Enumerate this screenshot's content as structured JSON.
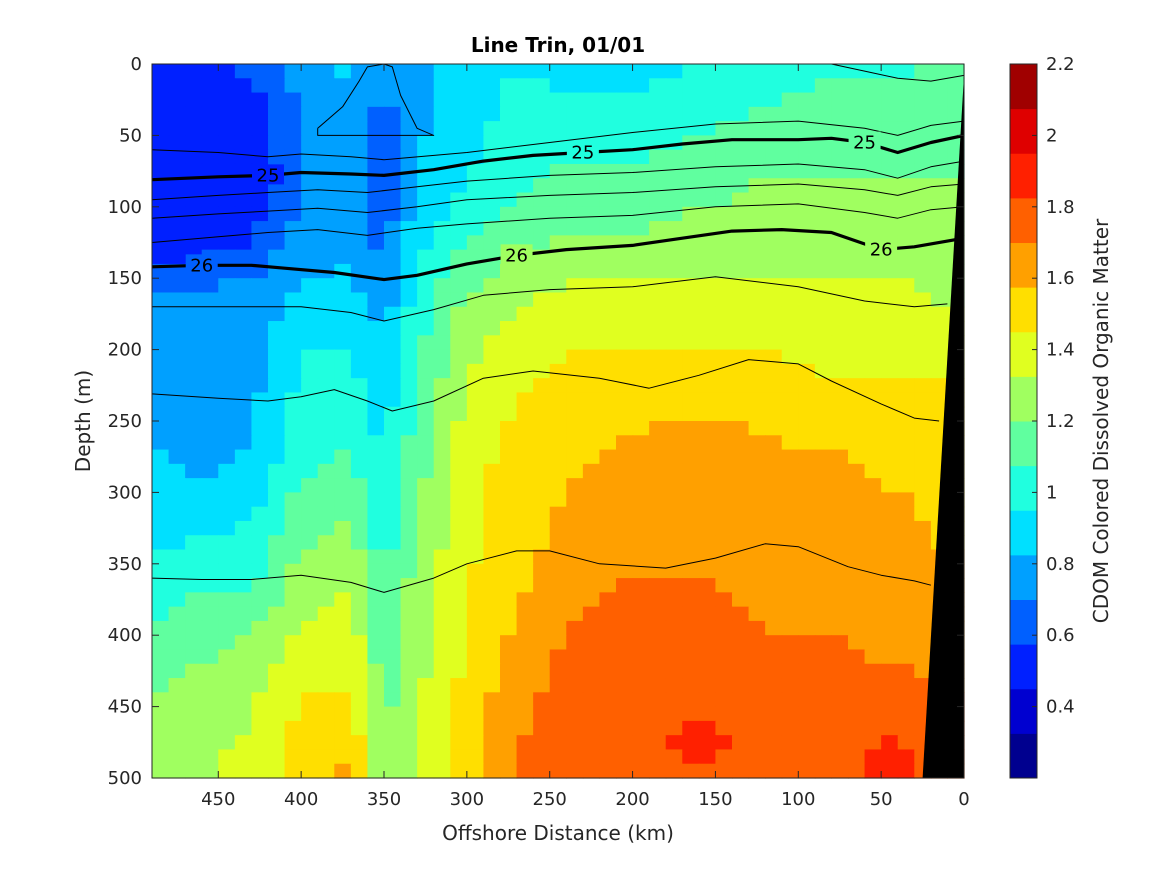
{
  "chart_data": {
    "type": "heatmap",
    "title": "Line Trin, 01/01",
    "xlabel": "Offshore Distance (km)",
    "ylabel": "Depth (m)",
    "colorbar_label": "CDOM Colored Dissolved Organic Matter",
    "xlim": [
      490,
      0
    ],
    "ylim": [
      0,
      500
    ],
    "xticks": [
      "450",
      "400",
      "350",
      "300",
      "250",
      "200",
      "150",
      "100",
      "50",
      "0"
    ],
    "yticks": [
      "0",
      "50",
      "100",
      "150",
      "200",
      "250",
      "300",
      "350",
      "400",
      "450",
      "500"
    ],
    "clim": [
      0.2,
      2.2
    ],
    "cticks": [
      "0.4",
      "0.6",
      "0.8",
      "1",
      "1.2",
      "1.4",
      "1.6",
      "1.8",
      "2",
      "2.2"
    ],
    "colormap": [
      "#00008f",
      "#0000d0",
      "#0020ff",
      "#0060ff",
      "#00a0ff",
      "#00e0ff",
      "#20ffdf",
      "#60ff9f",
      "#a0ff60",
      "#e0ff20",
      "#ffdf00",
      "#ffa000",
      "#ff6000",
      "#ff2000",
      "#df0000",
      "#a00000"
    ],
    "x": [
      490,
      460,
      430,
      400,
      370,
      350,
      330,
      300,
      270,
      240,
      200,
      160,
      120,
      80,
      40,
      10
    ],
    "depth": [
      0,
      40,
      80,
      120,
      160,
      200,
      240,
      280,
      320,
      360,
      400,
      440,
      480,
      500
    ],
    "cdom": [
      [
        0.55,
        0.55,
        0.6,
        0.75,
        0.85,
        0.7,
        0.8,
        0.9,
        0.95,
        0.9,
        0.9,
        0.95,
        1.0,
        1.05,
        1.05,
        1.1
      ],
      [
        0.5,
        0.45,
        0.5,
        0.7,
        0.8,
        0.65,
        0.8,
        0.9,
        1.0,
        1.0,
        1.0,
        1.05,
        1.1,
        1.15,
        1.15,
        1.15
      ],
      [
        0.45,
        0.45,
        0.5,
        0.7,
        0.75,
        0.6,
        0.85,
        0.95,
        1.05,
        1.1,
        1.1,
        1.15,
        1.2,
        1.2,
        1.2,
        1.2
      ],
      [
        0.5,
        0.5,
        0.55,
        0.75,
        0.8,
        0.65,
        0.9,
        1.05,
        1.15,
        1.2,
        1.2,
        1.25,
        1.25,
        1.25,
        1.25,
        1.2
      ],
      [
        0.7,
        0.7,
        0.75,
        0.85,
        0.85,
        0.75,
        1.0,
        1.2,
        1.3,
        1.35,
        1.35,
        1.35,
        1.35,
        1.35,
        1.35,
        1.3
      ],
      [
        0.75,
        0.7,
        0.75,
        0.95,
        0.95,
        0.85,
        1.05,
        1.3,
        1.4,
        1.45,
        1.45,
        1.45,
        1.45,
        1.4,
        1.4,
        1.4
      ],
      [
        0.8,
        0.75,
        0.8,
        1.0,
        1.0,
        0.9,
        1.1,
        1.35,
        1.45,
        1.5,
        1.55,
        1.55,
        1.55,
        1.5,
        1.5,
        1.5
      ],
      [
        0.85,
        0.8,
        0.85,
        1.05,
        1.1,
        0.95,
        1.15,
        1.4,
        1.5,
        1.55,
        1.6,
        1.65,
        1.6,
        1.6,
        1.55,
        1.55
      ],
      [
        0.9,
        0.9,
        0.95,
        1.15,
        1.2,
        1.0,
        1.2,
        1.4,
        1.5,
        1.6,
        1.65,
        1.65,
        1.6,
        1.6,
        1.6,
        1.55
      ],
      [
        1.0,
        1.05,
        1.05,
        1.25,
        1.3,
        1.05,
        1.25,
        1.45,
        1.55,
        1.65,
        1.7,
        1.7,
        1.65,
        1.65,
        1.6,
        1.6
      ],
      [
        1.1,
        1.15,
        1.2,
        1.35,
        1.4,
        1.1,
        1.25,
        1.45,
        1.6,
        1.7,
        1.75,
        1.75,
        1.7,
        1.7,
        1.65,
        1.6
      ],
      [
        1.2,
        1.25,
        1.3,
        1.45,
        1.45,
        1.15,
        1.3,
        1.5,
        1.65,
        1.75,
        1.8,
        1.8,
        1.75,
        1.75,
        1.75,
        1.7
      ],
      [
        1.25,
        1.3,
        1.35,
        1.5,
        1.55,
        1.2,
        1.3,
        1.5,
        1.7,
        1.8,
        1.8,
        1.85,
        1.8,
        1.8,
        1.85,
        1.75
      ],
      [
        1.25,
        1.3,
        1.35,
        1.55,
        1.6,
        1.2,
        1.3,
        1.5,
        1.7,
        1.75,
        1.8,
        1.8,
        1.8,
        1.8,
        1.85,
        1.75
      ]
    ],
    "isopycnals": [
      {
        "label": "",
        "bold": false,
        "points": [
          [
            490,
            60
          ],
          [
            450,
            62
          ],
          [
            420,
            65
          ],
          [
            400,
            63
          ],
          [
            370,
            65
          ],
          [
            350,
            67
          ],
          [
            300,
            62
          ],
          [
            250,
            55
          ],
          [
            200,
            48
          ],
          [
            150,
            42
          ],
          [
            100,
            40
          ],
          [
            60,
            45
          ],
          [
            40,
            50
          ],
          [
            20,
            43
          ],
          [
            0,
            40
          ]
        ]
      },
      {
        "label": "25",
        "bold": true,
        "points": [
          [
            490,
            81
          ],
          [
            450,
            79
          ],
          [
            420,
            78
          ],
          [
            400,
            76
          ],
          [
            370,
            77
          ],
          [
            350,
            78
          ],
          [
            320,
            74
          ],
          [
            290,
            68
          ],
          [
            260,
            64
          ],
          [
            230,
            62
          ],
          [
            200,
            60
          ],
          [
            170,
            56
          ],
          [
            140,
            53
          ],
          [
            120,
            53
          ],
          [
            100,
            53
          ],
          [
            80,
            52
          ],
          [
            60,
            55
          ],
          [
            40,
            62
          ],
          [
            20,
            55
          ],
          [
            0,
            50
          ]
        ]
      },
      {
        "label": "",
        "bold": false,
        "points": [
          [
            490,
            95
          ],
          [
            450,
            92
          ],
          [
            420,
            90
          ],
          [
            390,
            88
          ],
          [
            360,
            90
          ],
          [
            330,
            86
          ],
          [
            300,
            82
          ],
          [
            250,
            78
          ],
          [
            200,
            76
          ],
          [
            150,
            72
          ],
          [
            100,
            70
          ],
          [
            60,
            74
          ],
          [
            40,
            80
          ],
          [
            20,
            72
          ],
          [
            0,
            68
          ]
        ]
      },
      {
        "label": "",
        "bold": false,
        "points": [
          [
            490,
            108
          ],
          [
            450,
            105
          ],
          [
            420,
            103
          ],
          [
            390,
            101
          ],
          [
            360,
            104
          ],
          [
            330,
            100
          ],
          [
            300,
            95
          ],
          [
            250,
            92
          ],
          [
            200,
            90
          ],
          [
            150,
            86
          ],
          [
            100,
            84
          ],
          [
            60,
            88
          ],
          [
            40,
            92
          ],
          [
            20,
            86
          ],
          [
            0,
            84
          ]
        ]
      },
      {
        "label": "",
        "bold": false,
        "points": [
          [
            490,
            125
          ],
          [
            450,
            121
          ],
          [
            420,
            118
          ],
          [
            390,
            116
          ],
          [
            360,
            120
          ],
          [
            330,
            115
          ],
          [
            300,
            112
          ],
          [
            250,
            108
          ],
          [
            200,
            106
          ],
          [
            150,
            100
          ],
          [
            100,
            98
          ],
          [
            60,
            104
          ],
          [
            40,
            108
          ],
          [
            20,
            102
          ],
          [
            0,
            100
          ]
        ]
      },
      {
        "label": "26",
        "bold": true,
        "points": [
          [
            490,
            142
          ],
          [
            460,
            141
          ],
          [
            430,
            141
          ],
          [
            410,
            143
          ],
          [
            380,
            146
          ],
          [
            350,
            151
          ],
          [
            330,
            148
          ],
          [
            300,
            140
          ],
          [
            270,
            134
          ],
          [
            240,
            130
          ],
          [
            200,
            127
          ],
          [
            170,
            122
          ],
          [
            140,
            117
          ],
          [
            110,
            116
          ],
          [
            80,
            118
          ],
          [
            50,
            130
          ],
          [
            30,
            128
          ],
          [
            10,
            124
          ],
          [
            0,
            122
          ]
        ]
      },
      {
        "label": "",
        "bold": false,
        "points": [
          [
            490,
            170
          ],
          [
            450,
            170
          ],
          [
            420,
            170
          ],
          [
            400,
            170
          ],
          [
            370,
            174
          ],
          [
            350,
            180
          ],
          [
            320,
            172
          ],
          [
            290,
            162
          ],
          [
            250,
            158
          ],
          [
            200,
            156
          ],
          [
            150,
            149
          ],
          [
            100,
            156
          ],
          [
            60,
            166
          ],
          [
            30,
            170
          ],
          [
            10,
            168
          ]
        ]
      },
      {
        "label": "",
        "bold": false,
        "points": [
          [
            490,
            231
          ],
          [
            450,
            234
          ],
          [
            420,
            236
          ],
          [
            400,
            233
          ],
          [
            380,
            228
          ],
          [
            360,
            236
          ],
          [
            345,
            243
          ],
          [
            320,
            236
          ],
          [
            290,
            220
          ],
          [
            260,
            215
          ],
          [
            220,
            220
          ],
          [
            190,
            227
          ],
          [
            160,
            218
          ],
          [
            130,
            207
          ],
          [
            100,
            210
          ],
          [
            80,
            222
          ],
          [
            50,
            238
          ],
          [
            30,
            248
          ],
          [
            15,
            250
          ]
        ]
      },
      {
        "label": "",
        "bold": false,
        "points": [
          [
            490,
            360
          ],
          [
            460,
            361
          ],
          [
            430,
            361
          ],
          [
            400,
            358
          ],
          [
            370,
            363
          ],
          [
            350,
            370
          ],
          [
            320,
            360
          ],
          [
            300,
            350
          ],
          [
            270,
            341
          ],
          [
            250,
            341
          ],
          [
            220,
            350
          ],
          [
            180,
            353
          ],
          [
            150,
            346
          ],
          [
            120,
            336
          ],
          [
            100,
            338
          ],
          [
            70,
            352
          ],
          [
            50,
            358
          ],
          [
            30,
            362
          ],
          [
            20,
            365
          ]
        ]
      },
      {
        "label": "",
        "bold": false,
        "points": [
          [
            490,
            0
          ],
          [
            470,
            0
          ],
          [
            440,
            0
          ],
          [
            400,
            0
          ]
        ]
      },
      {
        "label": "",
        "bold": false,
        "points": [
          [
            390,
            45
          ],
          [
            375,
            30
          ],
          [
            365,
            12
          ],
          [
            360,
            2
          ],
          [
            350,
            0
          ],
          [
            345,
            2
          ],
          [
            340,
            22
          ],
          [
            330,
            45
          ],
          [
            320,
            50
          ],
          [
            360,
            50
          ],
          [
            390,
            50
          ],
          [
            390,
            45
          ]
        ]
      },
      {
        "label": "",
        "bold": false,
        "points": [
          [
            80,
            0
          ],
          [
            60,
            5
          ],
          [
            40,
            10
          ],
          [
            20,
            12
          ],
          [
            0,
            8
          ]
        ]
      }
    ],
    "bathymetry": [
      [
        0,
        8
      ],
      [
        25,
        500
      ],
      [
        0,
        500
      ]
    ]
  }
}
